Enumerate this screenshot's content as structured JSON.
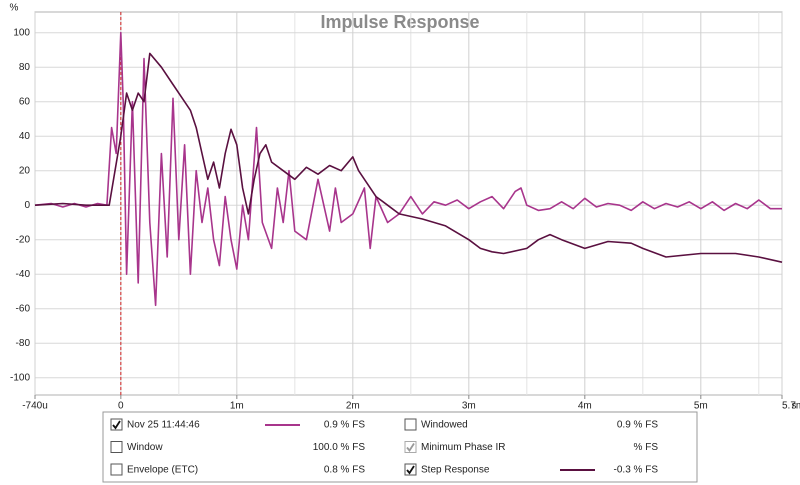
{
  "chart_data": {
    "type": "line",
    "title": "Impulse Response",
    "ylabel": "%",
    "xlabel": "s",
    "xlim": [
      -0.74,
      5.7
    ],
    "ylim": [
      -110,
      112
    ],
    "xticks": [
      {
        "value": -0.74,
        "label": "-740u"
      },
      0,
      {
        "value": 1,
        "label": "1m"
      },
      {
        "value": 2,
        "label": "2m"
      },
      {
        "value": 3,
        "label": "3m"
      },
      {
        "value": 4,
        "label": "4m"
      },
      {
        "value": 5,
        "label": "5m"
      },
      {
        "value": 5.7,
        "label": "5.7m"
      }
    ],
    "xminor": [
      0.5,
      1.5,
      2.5,
      3.5,
      4.5,
      5.5
    ],
    "yticks": [
      -100,
      -80,
      -60,
      -40,
      -20,
      0,
      20,
      40,
      60,
      80,
      100
    ],
    "grid": true,
    "marker_x": 0,
    "series": [
      {
        "name": "Nov 25 11:44:46",
        "color": "#a8358c",
        "readout": "0.9 % FS",
        "checked": true,
        "x": [
          -0.74,
          -0.6,
          -0.5,
          -0.4,
          -0.3,
          -0.2,
          -0.12,
          -0.08,
          -0.04,
          0,
          0.02,
          0.05,
          0.1,
          0.15,
          0.2,
          0.25,
          0.3,
          0.35,
          0.4,
          0.45,
          0.5,
          0.55,
          0.6,
          0.65,
          0.7,
          0.75,
          0.8,
          0.85,
          0.9,
          0.95,
          1.0,
          1.05,
          1.1,
          1.17,
          1.22,
          1.3,
          1.35,
          1.4,
          1.45,
          1.5,
          1.6,
          1.7,
          1.8,
          1.85,
          1.9,
          2.0,
          2.1,
          2.15,
          2.2,
          2.3,
          2.4,
          2.5,
          2.6,
          2.7,
          2.8,
          2.9,
          3.0,
          3.1,
          3.2,
          3.3,
          3.4,
          3.45,
          3.5,
          3.6,
          3.7,
          3.8,
          3.9,
          4.0,
          4.1,
          4.2,
          4.3,
          4.4,
          4.5,
          4.6,
          4.7,
          4.8,
          4.9,
          5.0,
          5.1,
          5.2,
          5.3,
          5.4,
          5.5,
          5.6,
          5.7
        ],
        "values": [
          0,
          1,
          -1,
          1,
          -1,
          1,
          0,
          45,
          30,
          100,
          60,
          -40,
          60,
          -45,
          85,
          -10,
          -58,
          30,
          -30,
          62,
          -20,
          35,
          -40,
          20,
          -10,
          10,
          -20,
          -35,
          5,
          -20,
          -37,
          0,
          -20,
          45,
          -10,
          -25,
          10,
          -10,
          20,
          -15,
          -20,
          15,
          -15,
          10,
          -10,
          -5,
          10,
          -25,
          5,
          -10,
          -5,
          5,
          -5,
          2,
          0,
          3,
          -2,
          2,
          5,
          -2,
          8,
          10,
          0,
          -3,
          -2,
          2,
          -2,
          4,
          -1,
          1,
          0,
          -3,
          2,
          -2,
          1,
          -1,
          2,
          -2,
          2,
          -3,
          1,
          -2,
          3,
          -2,
          -2
        ]
      },
      {
        "name": "Step Response",
        "color": "#5a1040",
        "readout": "-0.3 % FS",
        "checked": true,
        "x": [
          -0.74,
          -0.5,
          -0.3,
          -0.1,
          0,
          0.05,
          0.1,
          0.15,
          0.2,
          0.25,
          0.35,
          0.45,
          0.55,
          0.6,
          0.65,
          0.7,
          0.75,
          0.8,
          0.85,
          0.9,
          0.95,
          1.0,
          1.05,
          1.1,
          1.15,
          1.2,
          1.25,
          1.3,
          1.4,
          1.5,
          1.6,
          1.7,
          1.8,
          1.9,
          2.0,
          2.05,
          2.1,
          2.2,
          2.3,
          2.4,
          2.6,
          2.8,
          3.0,
          3.1,
          3.2,
          3.3,
          3.5,
          3.6,
          3.7,
          3.8,
          4.0,
          4.2,
          4.4,
          4.5,
          4.7,
          5.0,
          5.3,
          5.5,
          5.7
        ],
        "values": [
          0,
          1,
          0,
          0,
          40,
          65,
          55,
          65,
          60,
          88,
          80,
          70,
          60,
          55,
          45,
          30,
          15,
          25,
          10,
          30,
          44,
          35,
          10,
          -5,
          15,
          30,
          35,
          25,
          20,
          15,
          22,
          18,
          23,
          20,
          28,
          20,
          15,
          5,
          0,
          -5,
          -8,
          -12,
          -20,
          -25,
          -27,
          -28,
          -25,
          -20,
          -17,
          -20,
          -25,
          -21,
          -22,
          -25,
          -30,
          -28,
          -28,
          -30,
          -33
        ]
      }
    ],
    "other_legend": [
      {
        "name": "Window",
        "color": "#1c1ca8",
        "readout": "100.0 % FS",
        "checked": false,
        "enabled": true
      },
      {
        "name": "Envelope (ETC)",
        "color": "#8a1a44",
        "readout": "0.8 % FS",
        "checked": false,
        "enabled": true
      },
      {
        "name": "Windowed",
        "color": "#d04ac0",
        "readout": "0.9 % FS",
        "checked": false,
        "enabled": true
      },
      {
        "name": "Minimum Phase IR",
        "color": "#999999",
        "readout": "% FS",
        "checked": true,
        "enabled": false
      }
    ]
  }
}
